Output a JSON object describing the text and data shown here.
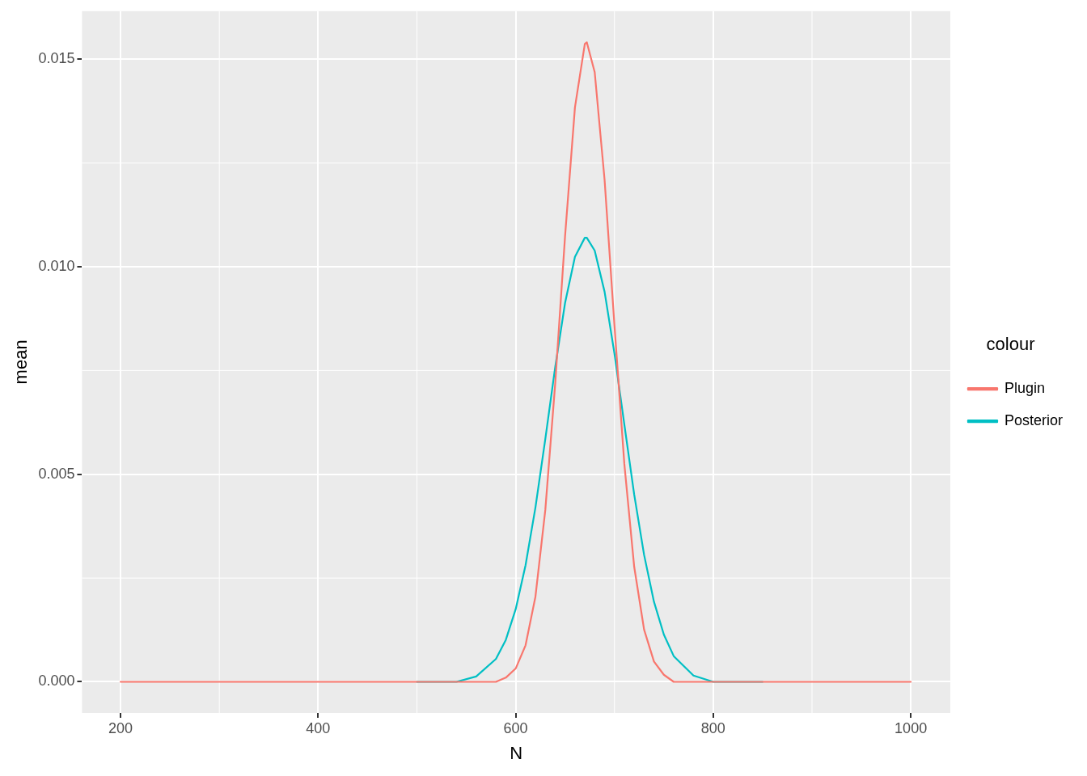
{
  "chart_data": {
    "type": "line",
    "xlabel": "N",
    "ylabel": "mean",
    "legend_title": "colour",
    "xlim": [
      161,
      1040
    ],
    "ylim": [
      -0.00075,
      0.01616
    ],
    "xticks": [
      200,
      400,
      600,
      800,
      1000
    ],
    "yticks": [
      {
        "value": 0,
        "label": "0.000"
      },
      {
        "value": 0.005,
        "label": "0.005"
      },
      {
        "value": 0.01,
        "label": "0.010"
      },
      {
        "value": 0.015,
        "label": "0.015"
      }
    ],
    "grid": true,
    "legend": "right",
    "marker": "none",
    "line_style": "solid",
    "x": [
      200,
      300,
      400,
      500,
      540,
      560,
      580,
      590,
      600,
      610,
      620,
      630,
      640,
      650,
      660,
      670,
      672,
      680,
      690,
      700,
      710,
      720,
      730,
      740,
      750,
      760,
      780,
      800,
      820,
      850,
      900,
      1000
    ],
    "series": [
      {
        "name": "Plugin",
        "color": "#f8766d",
        "values": [
          0,
          0,
          0,
          0,
          0,
          0,
          0,
          0.0001,
          0.00032,
          0.00088,
          0.00205,
          0.00414,
          0.00718,
          0.01074,
          0.01384,
          0.01537,
          0.01541,
          0.01469,
          0.0121,
          0.00859,
          0.00525,
          0.00277,
          0.00126,
          0.00049,
          0.00017,
          0,
          0,
          0,
          0,
          0,
          0,
          0
        ]
      },
      {
        "name": "Posterior",
        "color": "#00bfc4",
        "values": [
          null,
          null,
          null,
          0,
          0,
          0.00013,
          0.00055,
          0.00101,
          0.00175,
          0.00281,
          0.0042,
          0.00585,
          0.00758,
          0.00913,
          0.01024,
          0.0107,
          0.0107,
          0.01039,
          0.0094,
          0.00791,
          0.0062,
          0.00451,
          0.00306,
          0.00193,
          0.00114,
          0.00062,
          0.00015,
          0,
          0,
          0,
          null,
          null
        ]
      }
    ]
  }
}
